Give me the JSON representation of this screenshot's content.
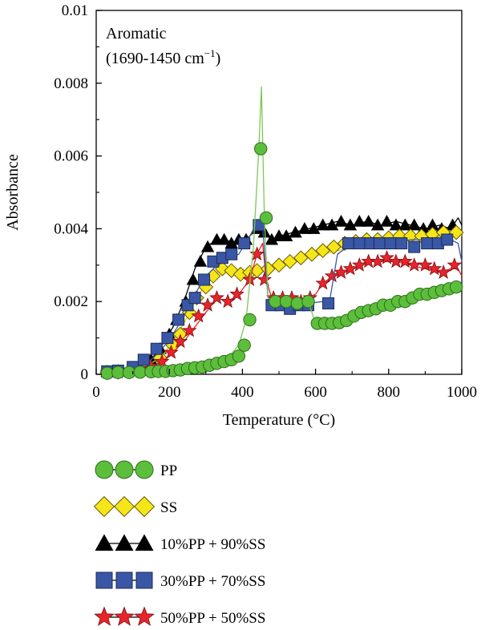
{
  "chart_data": {
    "type": "line",
    "annotation": {
      "line1": "Aromatic",
      "line2_prefix": "(1690-1450 cm",
      "line2_sup": "−1",
      "line2_suffix": ")"
    },
    "xlabel": "Temperature (°C)",
    "ylabel": "Absorbance",
    "xlim": [
      0,
      1000
    ],
    "ylim": [
      0,
      0.01
    ],
    "x_ticks": [
      0,
      200,
      400,
      600,
      800,
      1000
    ],
    "x_tick_labels": [
      "0",
      "200",
      "400",
      "600",
      "800",
      "1000"
    ],
    "y_ticks": [
      0,
      0.002,
      0.004,
      0.006,
      0.008,
      0.01
    ],
    "y_tick_labels": [
      "0",
      "0.002",
      "0.004",
      "0.006",
      "0.008",
      "0.01"
    ],
    "grid": false,
    "legend_position": "below",
    "series": [
      {
        "name": "PP",
        "marker": "circle",
        "fill": "#5cbf3c",
        "line_color": "#7dc854",
        "x": [
          30,
          60,
          90,
          120,
          150,
          180,
          210,
          240,
          270,
          300,
          330,
          360,
          390,
          410,
          430,
          445,
          452,
          460,
          470,
          480,
          500,
          520,
          540,
          560,
          580,
          600,
          620,
          640,
          660,
          680,
          700,
          730,
          760,
          790,
          820,
          850,
          880,
          910,
          940,
          970,
          995
        ],
        "y": [
          3e-05,
          5e-05,
          5e-05,
          6e-05,
          7e-05,
          8e-05,
          0.0001,
          0.00014,
          0.00018,
          0.00024,
          0.00032,
          0.00045,
          0.0008,
          0.0015,
          0.0035,
          0.0062,
          0.0079,
          0.0043,
          0.0021,
          0.002,
          0.002,
          0.002,
          0.00195,
          0.00195,
          0.002,
          0.0014,
          0.0014,
          0.0014,
          0.0014,
          0.00145,
          0.0015,
          0.0016,
          0.0017,
          0.0018,
          0.0019,
          0.002,
          0.0021,
          0.0022,
          0.0023,
          0.0024,
          0.00235
        ],
        "markers": [
          [
            30,
            3e-05
          ],
          [
            60,
            5e-05
          ],
          [
            90,
            5e-05
          ],
          [
            120,
            6e-05
          ],
          [
            150,
            7e-05
          ],
          [
            170,
            8e-05
          ],
          [
            190,
            8e-05
          ],
          [
            210,
            0.0001
          ],
          [
            230,
            0.00012
          ],
          [
            250,
            0.00016
          ],
          [
            270,
            0.00018
          ],
          [
            290,
            0.0002
          ],
          [
            310,
            0.00025
          ],
          [
            330,
            0.0003
          ],
          [
            350,
            0.00035
          ],
          [
            370,
            0.0004
          ],
          [
            390,
            0.0005
          ],
          [
            405,
            0.0008
          ],
          [
            420,
            0.0015
          ],
          [
            450,
            0.0062
          ],
          [
            465,
            0.0043
          ],
          [
            490,
            0.002
          ],
          [
            520,
            0.002
          ],
          [
            550,
            0.00195
          ],
          [
            580,
            0.002
          ],
          [
            605,
            0.0014
          ],
          [
            625,
            0.0014
          ],
          [
            645,
            0.0014
          ],
          [
            665,
            0.00142
          ],
          [
            685,
            0.00148
          ],
          [
            705,
            0.0016
          ],
          [
            725,
            0.0017
          ],
          [
            745,
            0.00175
          ],
          [
            765,
            0.0018
          ],
          [
            785,
            0.0019
          ],
          [
            805,
            0.0019
          ],
          [
            825,
            0.002
          ],
          [
            845,
            0.002
          ],
          [
            865,
            0.0021
          ],
          [
            885,
            0.0022
          ],
          [
            905,
            0.0022
          ],
          [
            925,
            0.00225
          ],
          [
            945,
            0.0023
          ],
          [
            965,
            0.00235
          ],
          [
            985,
            0.0024
          ]
        ]
      },
      {
        "name": "SS",
        "marker": "diamond",
        "fill": "#f5e61a",
        "line_color": "#e8c800",
        "x": [
          30,
          60,
          90,
          120,
          150,
          180,
          210,
          240,
          270,
          300,
          330,
          360,
          380,
          400,
          430,
          460,
          500,
          540,
          580,
          620,
          660,
          700,
          740,
          780,
          820,
          860,
          900,
          940,
          970,
          990,
          1000
        ],
        "y": [
          5e-05,
          6e-05,
          0.0001,
          0.00018,
          0.0003,
          0.0005,
          0.0009,
          0.0014,
          0.002,
          0.0025,
          0.0028,
          0.0029,
          0.0028,
          0.00275,
          0.00285,
          0.0029,
          0.003,
          0.0031,
          0.0032,
          0.0033,
          0.0034,
          0.0035,
          0.00355,
          0.0036,
          0.00365,
          0.0037,
          0.0037,
          0.0038,
          0.0039,
          0.004,
          0.0038
        ],
        "markers": [
          [
            30,
            5e-05
          ],
          [
            60,
            6e-05
          ],
          [
            100,
            0.00012
          ],
          [
            140,
            0.00025
          ],
          [
            175,
            0.00045
          ],
          [
            210,
            0.0008
          ],
          [
            230,
            0.0011
          ],
          [
            255,
            0.0017
          ],
          [
            275,
            0.0021
          ],
          [
            300,
            0.0024
          ],
          [
            320,
            0.0027
          ],
          [
            345,
            0.0029
          ],
          [
            370,
            0.00285
          ],
          [
            395,
            0.00275
          ],
          [
            420,
            0.0028
          ],
          [
            440,
            0.00285
          ],
          [
            470,
            0.0029
          ],
          [
            500,
            0.003
          ],
          [
            530,
            0.0031
          ],
          [
            560,
            0.0032
          ],
          [
            590,
            0.0033
          ],
          [
            620,
            0.0034
          ],
          [
            650,
            0.0035
          ],
          [
            680,
            0.0036
          ],
          [
            710,
            0.00365
          ],
          [
            740,
            0.0037
          ],
          [
            770,
            0.0037
          ],
          [
            800,
            0.00375
          ],
          [
            830,
            0.0038
          ],
          [
            860,
            0.0038
          ],
          [
            890,
            0.0038
          ],
          [
            920,
            0.00385
          ],
          [
            950,
            0.0039
          ],
          [
            985,
            0.0039
          ]
        ]
      },
      {
        "name": "10%PP + 90%SS",
        "marker": "triangle",
        "fill": "#000000",
        "line_color": "#000000",
        "x": [
          30,
          60,
          90,
          120,
          150,
          180,
          210,
          240,
          270,
          300,
          330,
          350,
          380,
          410,
          440,
          460,
          480,
          500,
          540,
          580,
          620,
          660,
          700,
          740,
          780,
          820,
          860,
          900,
          940,
          970,
          990,
          1000
        ],
        "y": [
          8e-05,
          0.0001,
          0.00015,
          0.0002,
          0.0004,
          0.0008,
          0.0013,
          0.002,
          0.0029,
          0.0035,
          0.0037,
          0.0037,
          0.0036,
          0.0037,
          0.004,
          0.0039,
          0.0037,
          0.0038,
          0.0039,
          0.004,
          0.0041,
          0.0042,
          0.0041,
          0.0042,
          0.0041,
          0.0042,
          0.0041,
          0.004,
          0.0041,
          0.004,
          0.0043,
          0.0041
        ],
        "markers": [
          [
            30,
            8e-05
          ],
          [
            60,
            0.0001
          ],
          [
            90,
            0.00015
          ],
          [
            120,
            0.0002
          ],
          [
            150,
            0.0004
          ],
          [
            175,
            0.0007
          ],
          [
            200,
            0.0011
          ],
          [
            220,
            0.0015
          ],
          [
            245,
            0.002
          ],
          [
            265,
            0.0026
          ],
          [
            285,
            0.0031
          ],
          [
            305,
            0.0035
          ],
          [
            330,
            0.0037
          ],
          [
            350,
            0.0037
          ],
          [
            370,
            0.0036
          ],
          [
            390,
            0.0037
          ],
          [
            410,
            0.0037
          ],
          [
            440,
            0.004
          ],
          [
            460,
            0.0039
          ],
          [
            480,
            0.0037
          ],
          [
            500,
            0.0038
          ],
          [
            520,
            0.0038
          ],
          [
            545,
            0.0039
          ],
          [
            570,
            0.004
          ],
          [
            595,
            0.004
          ],
          [
            620,
            0.0041
          ],
          [
            645,
            0.0041
          ],
          [
            670,
            0.0042
          ],
          [
            695,
            0.0041
          ],
          [
            720,
            0.0042
          ],
          [
            745,
            0.0042
          ],
          [
            770,
            0.0041
          ],
          [
            795,
            0.0042
          ],
          [
            820,
            0.0041
          ],
          [
            845,
            0.0041
          ],
          [
            870,
            0.0041
          ],
          [
            895,
            0.004
          ],
          [
            920,
            0.0041
          ],
          [
            945,
            0.004
          ],
          [
            975,
            0.0041
          ]
        ]
      },
      {
        "name": "30%PP + 70%SS",
        "marker": "square",
        "fill": "#3a57a5",
        "line_color": "#3a57a5",
        "x": [
          30,
          60,
          90,
          120,
          150,
          180,
          210,
          240,
          270,
          300,
          330,
          360,
          390,
          420,
          440,
          455,
          470,
          480,
          500,
          540,
          580,
          620,
          640,
          660,
          700,
          740,
          780,
          820,
          860,
          900,
          940,
          970,
          990,
          1000
        ],
        "y": [
          8e-05,
          0.0001,
          0.00015,
          0.0002,
          0.0004,
          0.0007,
          0.0011,
          0.0016,
          0.0022,
          0.0027,
          0.003,
          0.0032,
          0.0033,
          0.0038,
          0.0041,
          0.0041,
          0.0021,
          0.0019,
          0.0019,
          0.0019,
          0.00195,
          0.002,
          0.0021,
          0.0033,
          0.0036,
          0.0037,
          0.0036,
          0.0036,
          0.0037,
          0.0037,
          0.0036,
          0.0037,
          0.0036,
          0.0031
        ],
        "markers": [
          [
            30,
            8e-05
          ],
          [
            60,
            0.0001
          ],
          [
            100,
            0.0002
          ],
          [
            130,
            0.0004
          ],
          [
            165,
            0.0007
          ],
          [
            195,
            0.001
          ],
          [
            225,
            0.0015
          ],
          [
            250,
            0.0019
          ],
          [
            270,
            0.0021
          ],
          [
            295,
            0.0026
          ],
          [
            320,
            0.0031
          ],
          [
            345,
            0.0032
          ],
          [
            370,
            0.0033
          ],
          [
            405,
            0.0036
          ],
          [
            445,
            0.0041
          ],
          [
            480,
            0.0019
          ],
          [
            505,
            0.0019
          ],
          [
            530,
            0.0018
          ],
          [
            555,
            0.0019
          ],
          [
            580,
            0.0019
          ],
          [
            635,
            0.00195
          ],
          [
            690,
            0.0036
          ],
          [
            720,
            0.0036
          ],
          [
            750,
            0.0036
          ],
          [
            775,
            0.0036
          ],
          [
            805,
            0.0036
          ],
          [
            835,
            0.0036
          ],
          [
            870,
            0.0035
          ],
          [
            905,
            0.0036
          ],
          [
            935,
            0.0036
          ],
          [
            960,
            0.0037
          ]
        ]
      },
      {
        "name": "50%PP + 50%SS",
        "marker": "star",
        "fill": "#e8242a",
        "line_color": "#e8242a",
        "x": [
          30,
          60,
          90,
          120,
          150,
          180,
          210,
          240,
          270,
          300,
          330,
          360,
          390,
          420,
          440,
          455,
          465,
          480,
          500,
          540,
          580,
          600,
          620,
          660,
          700,
          740,
          780,
          820,
          860,
          900,
          940,
          970,
          990,
          1000
        ],
        "y": [
          5e-05,
          6e-05,
          0.0001,
          0.00012,
          0.0002,
          0.00035,
          0.0006,
          0.0009,
          0.0013,
          0.0017,
          0.0021,
          0.002,
          0.0022,
          0.0026,
          0.0033,
          0.0036,
          0.0026,
          0.0021,
          0.0021,
          0.002,
          0.0021,
          0.0022,
          0.0025,
          0.0028,
          0.0029,
          0.0031,
          0.0031,
          0.0031,
          0.003,
          0.0029,
          0.0028,
          0.0029,
          0.0029,
          0.0027
        ],
        "markers": [
          [
            30,
            5e-05
          ],
          [
            60,
            6e-05
          ],
          [
            90,
            0.0001
          ],
          [
            120,
            0.00015
          ],
          [
            150,
            0.00022
          ],
          [
            180,
            0.00035
          ],
          [
            205,
            0.0006
          ],
          [
            230,
            0.0009
          ],
          [
            255,
            0.0012
          ],
          [
            280,
            0.0016
          ],
          [
            305,
            0.0019
          ],
          [
            330,
            0.0021
          ],
          [
            360,
            0.002
          ],
          [
            385,
            0.0022
          ],
          [
            420,
            0.0026
          ],
          [
            440,
            0.0033
          ],
          [
            460,
            0.0026
          ],
          [
            485,
            0.0021
          ],
          [
            510,
            0.0021
          ],
          [
            535,
            0.0021
          ],
          [
            560,
            0.002
          ],
          [
            585,
            0.0021
          ],
          [
            620,
            0.0025
          ],
          [
            645,
            0.0027
          ],
          [
            670,
            0.0028
          ],
          [
            695,
            0.0029
          ],
          [
            720,
            0.003
          ],
          [
            745,
            0.0031
          ],
          [
            770,
            0.0031
          ],
          [
            795,
            0.0032
          ],
          [
            820,
            0.0031
          ],
          [
            845,
            0.0031
          ],
          [
            870,
            0.003
          ],
          [
            900,
            0.003
          ],
          [
            925,
            0.0029
          ],
          [
            950,
            0.0028
          ],
          [
            980,
            0.003
          ]
        ]
      }
    ]
  }
}
